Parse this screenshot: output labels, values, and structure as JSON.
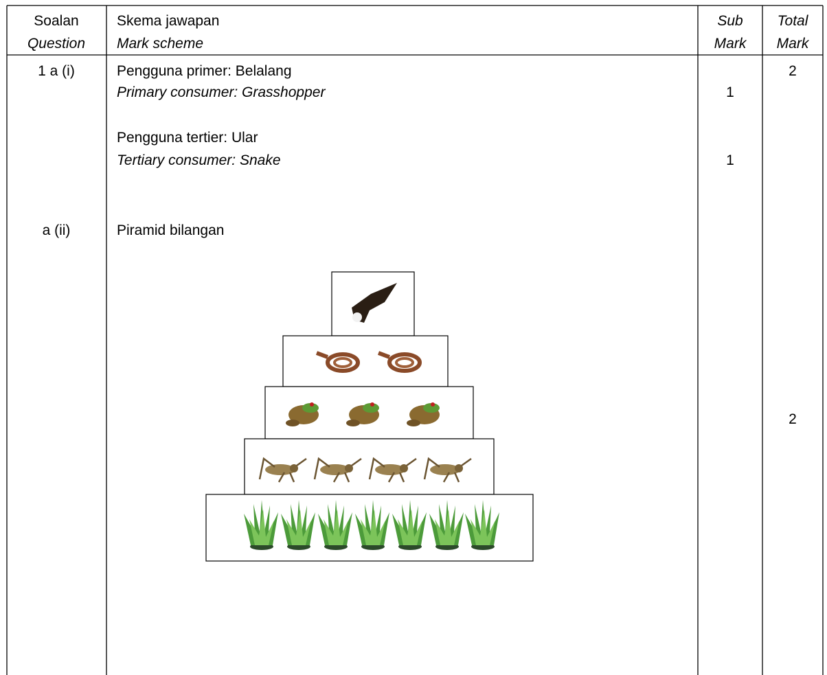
{
  "table": {
    "header": [
      {
        "malay": "Soalan",
        "english": "Question"
      },
      {
        "malay": "Skema jawapan",
        "english": "Mark scheme"
      },
      {
        "malay": "Sub",
        "english": "Mark"
      },
      {
        "malay": "Total",
        "english": "Mark"
      }
    ],
    "rows": [
      {
        "question": "1 a (i)",
        "total": "2",
        "items": [
          {
            "malay": "Pengguna primer: Belalang",
            "english": "Primary consumer: Grasshopper",
            "sub": "1"
          },
          {
            "malay": "Pengguna tertier: Ular",
            "english": "Tertiary consumer: Snake",
            "sub": "1"
          }
        ]
      },
      {
        "question": "a (ii)",
        "total": "2",
        "heading": "Piramid bilangan"
      }
    ]
  }
}
